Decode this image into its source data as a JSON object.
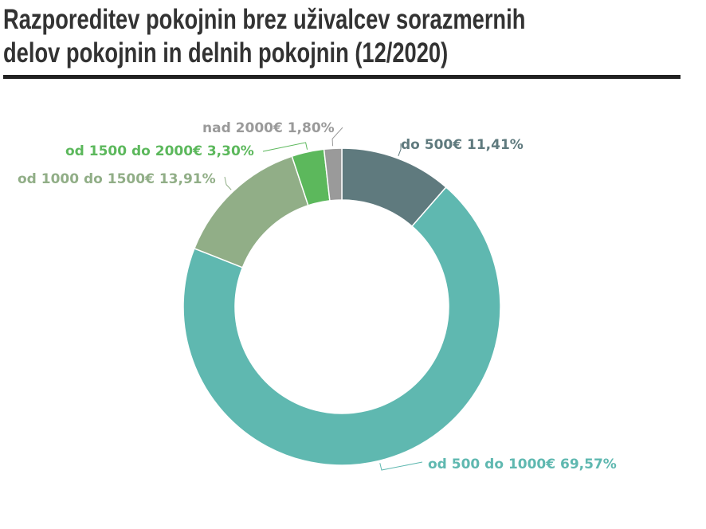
{
  "title_line1": "Razporeditev pokojnin brez uživalcev sorazmernih",
  "title_line2": "delov pokojnin in delnih pokojnin (12/2020)",
  "chart_data": {
    "type": "pie",
    "donut": true,
    "title": "Razporeditev pokojnin brez uživalcev sorazmernih delov pokojnin in delnih pokojnin (12/2020)",
    "slices": [
      {
        "label": "do 500€",
        "value": 11.41,
        "text": "do 500€ 11,41%",
        "color": "#5f7a7e"
      },
      {
        "label": "od 500 do 1000€",
        "value": 69.57,
        "text": "od 500 do 1000€ 69,57%",
        "color": "#5fb8b0"
      },
      {
        "label": "od 1000 do 1500€",
        "value": 13.91,
        "text": "od 1000 do 1500€ 13,91%",
        "color": "#91ae87"
      },
      {
        "label": "od 1500 do 2000€",
        "value": 3.3,
        "text": "od 1500 do 2000€ 3,30%",
        "color": "#5cb85c"
      },
      {
        "label": "nad 2000€",
        "value": 1.8,
        "text": "nad 2000€ 1,80%",
        "color": "#9a9a9a"
      }
    ]
  }
}
